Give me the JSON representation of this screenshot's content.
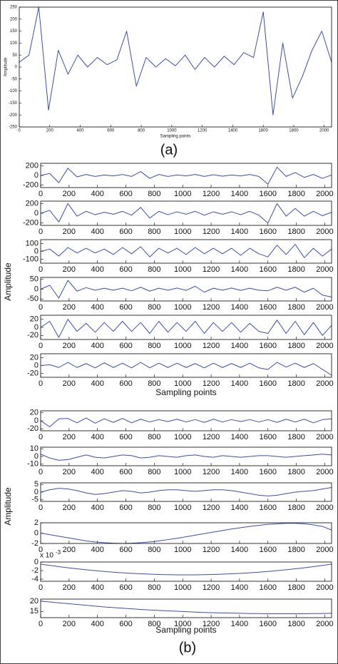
{
  "panel_labels": [
    "(a)",
    "(b)"
  ],
  "chart_data": [
    {
      "type": "line",
      "ylabel": "Amplitude",
      "xlabel": "Sampling points",
      "color": "#3a4fb3",
      "x": [
        0,
        64,
        128,
        192,
        256,
        320,
        384,
        448,
        512,
        576,
        640,
        704,
        768,
        832,
        896,
        960,
        1024,
        1088,
        1152,
        1216,
        1280,
        1344,
        1408,
        1472,
        1536,
        1600,
        1664,
        1728,
        1792,
        1856,
        1920,
        1984,
        2048
      ],
      "values": [
        20,
        50,
        250,
        -180,
        70,
        -30,
        50,
        0,
        40,
        10,
        30,
        150,
        -80,
        40,
        0,
        35,
        5,
        50,
        -10,
        40,
        0,
        45,
        10,
        60,
        40,
        230,
        -200,
        100,
        -130,
        -40,
        70,
        150,
        20
      ],
      "xlim": [
        0,
        2048
      ],
      "xticks": [
        0,
        200,
        400,
        600,
        800,
        1000,
        1200,
        1400,
        1600,
        1800,
        2000
      ],
      "ylim": [
        -250,
        250
      ],
      "yticks": [
        -250,
        -200,
        -150,
        -100,
        -50,
        0,
        50,
        100,
        150,
        200,
        250
      ]
    },
    {
      "type": "line",
      "ylabel": "Amplitude",
      "color": "#3a4fb3",
      "x": [
        0,
        64,
        128,
        192,
        256,
        320,
        384,
        448,
        512,
        576,
        640,
        704,
        768,
        832,
        896,
        960,
        1024,
        1088,
        1152,
        1216,
        1280,
        1344,
        1408,
        1472,
        1536,
        1600,
        1664,
        1728,
        1792,
        1856,
        1920,
        1984,
        2048
      ],
      "values": [
        0,
        40,
        -150,
        150,
        -30,
        20,
        -20,
        10,
        -10,
        20,
        -20,
        80,
        -60,
        20,
        -20,
        10,
        -10,
        20,
        -20,
        15,
        -15,
        10,
        -10,
        20,
        -20,
        -180,
        170,
        -20,
        60,
        -40,
        20,
        -60,
        10
      ],
      "xlim": [
        0,
        2048
      ],
      "xticks": [
        0,
        200,
        400,
        600,
        800,
        1000,
        1200,
        1400,
        1600,
        1800,
        2000
      ],
      "ylim": [
        -250,
        250
      ],
      "yticks": [
        -200,
        0,
        200
      ]
    },
    {
      "type": "line",
      "color": "#3a4fb3",
      "x": [
        0,
        64,
        128,
        192,
        256,
        320,
        384,
        448,
        512,
        576,
        640,
        704,
        768,
        832,
        896,
        960,
        1024,
        1088,
        1152,
        1216,
        1280,
        1344,
        1408,
        1472,
        1536,
        1600,
        1664,
        1728,
        1792,
        1856,
        1920,
        1984,
        2048
      ],
      "values": [
        0,
        60,
        -180,
        200,
        -60,
        40,
        -30,
        20,
        -20,
        40,
        -40,
        120,
        -100,
        40,
        -30,
        30,
        -20,
        40,
        -40,
        30,
        -20,
        30,
        -30,
        40,
        -40,
        -200,
        200,
        -60,
        100,
        -60,
        40,
        -50,
        20
      ],
      "xlim": [
        0,
        2048
      ],
      "xticks": [
        0,
        200,
        400,
        600,
        800,
        1000,
        1200,
        1400,
        1600,
        1800,
        2000
      ],
      "ylim": [
        -250,
        250
      ],
      "yticks": [
        -200,
        0,
        200
      ]
    },
    {
      "type": "line",
      "color": "#3a4fb3",
      "x": [
        0,
        64,
        128,
        192,
        256,
        320,
        384,
        448,
        512,
        576,
        640,
        704,
        768,
        832,
        896,
        960,
        1024,
        1088,
        1152,
        1216,
        1280,
        1344,
        1408,
        1472,
        1536,
        1600,
        1664,
        1728,
        1792,
        1856,
        1920,
        1984,
        2048
      ],
      "values": [
        0,
        30,
        -60,
        50,
        -20,
        40,
        -20,
        30,
        -40,
        50,
        -30,
        60,
        -70,
        40,
        -20,
        40,
        -40,
        50,
        -30,
        40,
        -30,
        40,
        -50,
        40,
        -30,
        -70,
        80,
        -40,
        90,
        -80,
        40,
        -60,
        30
      ],
      "xlim": [
        0,
        2048
      ],
      "xticks": [
        0,
        200,
        400,
        600,
        800,
        1000,
        1200,
        1400,
        1600,
        1800,
        2000
      ],
      "ylim": [
        -150,
        150
      ],
      "yticks": [
        -100,
        0,
        100
      ]
    },
    {
      "type": "line",
      "color": "#3a4fb3",
      "x": [
        0,
        64,
        128,
        192,
        256,
        320,
        384,
        448,
        512,
        576,
        640,
        704,
        768,
        832,
        896,
        960,
        1024,
        1088,
        1152,
        1216,
        1280,
        1344,
        1408,
        1472,
        1536,
        1600,
        1664,
        1728,
        1792,
        1856,
        1920,
        1984,
        2048
      ],
      "values": [
        0,
        20,
        -45,
        45,
        -10,
        8,
        -5,
        5,
        -5,
        5,
        -8,
        10,
        -10,
        5,
        -5,
        6,
        -6,
        15,
        -15,
        5,
        -5,
        6,
        -6,
        5,
        -5,
        -8,
        10,
        -5,
        10,
        -15,
        5,
        -30,
        -40
      ],
      "xlim": [
        0,
        2048
      ],
      "xticks": [
        0,
        200,
        400,
        600,
        800,
        1000,
        1200,
        1400,
        1600,
        1800,
        2000
      ],
      "ylim": [
        -60,
        60
      ],
      "yticks": [
        -50,
        0,
        50
      ]
    },
    {
      "type": "line",
      "color": "#3a4fb3",
      "x": [
        0,
        64,
        128,
        192,
        256,
        320,
        384,
        448,
        512,
        576,
        640,
        704,
        768,
        832,
        896,
        960,
        1024,
        1088,
        1152,
        1216,
        1280,
        1344,
        1408,
        1472,
        1536,
        1600,
        1664,
        1728,
        1792,
        1856,
        1920,
        1984,
        2048
      ],
      "values": [
        0,
        15,
        -25,
        20,
        -10,
        10,
        -12,
        12,
        -10,
        15,
        -10,
        12,
        -15,
        15,
        -12,
        12,
        -10,
        15,
        -15,
        12,
        -10,
        12,
        -12,
        10,
        -10,
        -15,
        18,
        -15,
        15,
        -18,
        12,
        -20,
        5
      ],
      "xlim": [
        0,
        2048
      ],
      "xticks": [
        0,
        200,
        400,
        600,
        800,
        1000,
        1200,
        1400,
        1600,
        1800,
        2000
      ],
      "ylim": [
        -30,
        30
      ],
      "yticks": [
        -20,
        0,
        20
      ]
    },
    {
      "type": "line",
      "xlabel": "Sampling points",
      "color": "#3a4fb3",
      "x": [
        0,
        64,
        128,
        192,
        256,
        320,
        384,
        448,
        512,
        576,
        640,
        704,
        768,
        832,
        896,
        960,
        1024,
        1088,
        1152,
        1216,
        1280,
        1344,
        1408,
        1472,
        1536,
        1600,
        1664,
        1728,
        1792,
        1856,
        1920,
        1984,
        2048
      ],
      "values": [
        0,
        2,
        -5,
        8,
        -5,
        5,
        -6,
        7,
        -5,
        6,
        -6,
        8,
        -6,
        6,
        -5,
        6,
        -5,
        5,
        -6,
        6,
        -5,
        5,
        -5,
        6,
        -6,
        -10,
        8,
        -4,
        6,
        -5,
        5,
        -10,
        -25
      ],
      "xlim": [
        0,
        2048
      ],
      "xticks": [
        0,
        200,
        400,
        600,
        800,
        1000,
        1200,
        1400,
        1600,
        1800,
        2000
      ],
      "ylim": [
        -30,
        30
      ],
      "yticks": [
        -20,
        0,
        20
      ]
    },
    {
      "type": "line",
      "ylabel": "Amplitude",
      "color": "#3a4fb3",
      "x": [
        0,
        64,
        128,
        192,
        256,
        320,
        384,
        448,
        512,
        576,
        640,
        704,
        768,
        832,
        896,
        960,
        1024,
        1088,
        1152,
        1216,
        1280,
        1344,
        1408,
        1472,
        1536,
        1600,
        1664,
        1728,
        1792,
        1856,
        1920,
        1984,
        2048
      ],
      "values": [
        0,
        -15,
        5,
        6,
        -5,
        7,
        -6,
        5,
        -4,
        6,
        -5,
        4,
        -3,
        3,
        -2,
        4,
        -3,
        3,
        -4,
        4,
        -3,
        3,
        -2,
        3,
        -3,
        3,
        -4,
        4,
        -3,
        4,
        -5,
        3,
        5
      ],
      "xlim": [
        0,
        2048
      ],
      "xticks": [
        0,
        200,
        400,
        600,
        800,
        1000,
        1200,
        1400,
        1600,
        1800,
        2000
      ],
      "ylim": [
        -25,
        25
      ],
      "yticks": [
        -20,
        0,
        20
      ]
    },
    {
      "type": "line",
      "color": "#3a4fb3",
      "x": [
        0,
        64,
        128,
        192,
        256,
        320,
        384,
        448,
        512,
        576,
        640,
        704,
        768,
        832,
        896,
        960,
        1024,
        1088,
        1152,
        1216,
        1280,
        1344,
        1408,
        1472,
        1536,
        1600,
        1664,
        1728,
        1792,
        1856,
        1920,
        1984,
        2048
      ],
      "values": [
        3,
        -2,
        -5,
        -4,
        -1,
        2,
        -1,
        -2,
        0,
        2,
        1,
        -2,
        -1,
        1,
        0,
        -1,
        1,
        2,
        0,
        -1,
        1,
        0,
        -1,
        0,
        1,
        1,
        0,
        -1,
        0,
        1,
        2,
        3,
        2
      ],
      "xlim": [
        0,
        2048
      ],
      "xticks": [
        0,
        200,
        400,
        600,
        800,
        1000,
        1200,
        1400,
        1600,
        1800,
        2000
      ],
      "ylim": [
        -12,
        12
      ],
      "yticks": [
        -10,
        0,
        10
      ]
    },
    {
      "type": "line",
      "color": "#3a4fb3",
      "x": [
        0,
        64,
        128,
        192,
        256,
        320,
        384,
        448,
        512,
        576,
        640,
        704,
        768,
        832,
        896,
        960,
        1024,
        1088,
        1152,
        1216,
        1280,
        1344,
        1408,
        1472,
        1536,
        1600,
        1664,
        1728,
        1792,
        1856,
        1920,
        1984,
        2048
      ],
      "values": [
        0,
        1.5,
        2.5,
        2,
        1,
        -0.5,
        -1.5,
        -1,
        0,
        1,
        0.5,
        -0.5,
        0,
        1,
        1.5,
        1.5,
        1,
        0.5,
        1,
        1.5,
        1.5,
        1,
        0,
        -1,
        -2,
        -2.5,
        -2,
        -1,
        0,
        0.5,
        1,
        2,
        3
      ],
      "xlim": [
        0,
        2048
      ],
      "xticks": [
        0,
        200,
        400,
        600,
        800,
        1000,
        1200,
        1400,
        1600,
        1800,
        2000
      ],
      "ylim": [
        -6,
        6
      ],
      "yticks": [
        -5,
        0,
        5
      ]
    },
    {
      "type": "line",
      "color": "#3a4fb3",
      "x": [
        0,
        64,
        128,
        192,
        256,
        320,
        384,
        448,
        512,
        576,
        640,
        704,
        768,
        832,
        896,
        960,
        1024,
        1088,
        1152,
        1216,
        1280,
        1344,
        1408,
        1472,
        1536,
        1600,
        1664,
        1728,
        1792,
        1856,
        1920,
        1984,
        2048
      ],
      "values": [
        0,
        -0.3,
        -0.6,
        -0.9,
        -1.2,
        -1.5,
        -1.7,
        -1.85,
        -1.95,
        -2,
        -1.95,
        -1.85,
        -1.7,
        -1.5,
        -1.25,
        -1,
        -0.7,
        -0.4,
        -0.1,
        0.2,
        0.5,
        0.8,
        1.05,
        1.3,
        1.5,
        1.7,
        1.8,
        1.9,
        1.9,
        1.8,
        1.6,
        1.3,
        0.6
      ],
      "xlim": [
        0,
        2048
      ],
      "xticks": [
        0,
        200,
        400,
        600,
        800,
        1000,
        1200,
        1400,
        1600,
        1800,
        2000
      ],
      "ylim": [
        -2,
        2
      ],
      "yticks": [
        -2,
        0,
        2
      ]
    },
    {
      "type": "line",
      "color": "#3a4fb3",
      "scale_label": "x 10",
      "scale_exponent": "-3",
      "x": [
        0,
        64,
        128,
        192,
        256,
        320,
        384,
        448,
        512,
        576,
        640,
        704,
        768,
        832,
        896,
        960,
        1024,
        1088,
        1152,
        1216,
        1280,
        1344,
        1408,
        1472,
        1536,
        1600,
        1664,
        1728,
        1792,
        1856,
        1920,
        1984,
        2048
      ],
      "values": [
        -0.0005,
        -0.0008,
        -0.00109,
        -0.00135,
        -0.00159,
        -0.00182,
        -0.00202,
        -0.00221,
        -0.00238,
        -0.00252,
        -0.00265,
        -0.00276,
        -0.00284,
        -0.00291,
        -0.00296,
        -0.00299,
        -0.003,
        -0.00299,
        -0.00296,
        -0.00291,
        -0.00284,
        -0.00276,
        -0.00265,
        -0.00252,
        -0.00238,
        -0.00221,
        -0.00202,
        -0.00182,
        -0.00159,
        -0.00135,
        -0.00109,
        -0.0008,
        -0.0005
      ],
      "xlim": [
        0,
        2048
      ],
      "xticks": [
        0,
        200,
        400,
        600,
        800,
        1000,
        1200,
        1400,
        1600,
        1800,
        2000
      ],
      "ylim": [
        -0.0045,
        0
      ],
      "yticks": [
        {
          "value": -0.004,
          "label": "-4"
        },
        {
          "value": -0.002,
          "label": "-2"
        },
        0
      ]
    },
    {
      "type": "line",
      "xlabel": "Sampling points",
      "color": "#3a4fb3",
      "x": [
        0,
        64,
        128,
        192,
        256,
        320,
        384,
        448,
        512,
        576,
        640,
        704,
        768,
        832,
        896,
        960,
        1024,
        1088,
        1152,
        1216,
        1280,
        1344,
        1408,
        1472,
        1536,
        1600,
        1664,
        1728,
        1792,
        1856,
        1920,
        1984,
        2048
      ],
      "values": [
        20,
        19.6,
        19.2,
        18.8,
        18.4,
        18,
        17.6,
        17.2,
        16.9,
        16.6,
        16.3,
        16,
        15.7,
        15.5,
        15.3,
        15.1,
        14.9,
        14.7,
        14.5,
        14.4,
        14.3,
        14.2,
        14.1,
        14,
        14,
        13.9,
        13.9,
        13.9,
        13.9,
        13.9,
        14,
        14,
        14.1
      ],
      "xlim": [
        0,
        2048
      ],
      "xticks": [
        0,
        200,
        400,
        600,
        800,
        1000,
        1200,
        1400,
        1600,
        1800,
        2000
      ],
      "ylim": [
        12,
        21
      ],
      "yticks": [
        15,
        20
      ]
    }
  ]
}
